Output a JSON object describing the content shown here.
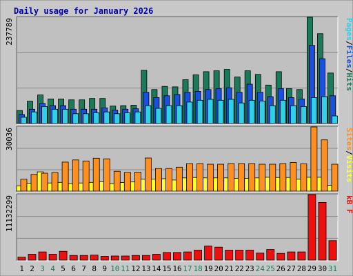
{
  "title": "Daily usage for January 2026",
  "colors": {
    "frame_bg": "#c8c8c8",
    "plot_bg": "#c0c0c0",
    "title": "#0000aa",
    "hits": "#1a7a5a",
    "files": "#1a50e0",
    "pages": "#30d0e8",
    "visits": "#ffff30",
    "sites": "#ff9020",
    "kbytes": "#ee1010",
    "weekend_label": "#1a7a5a",
    "weekday_label": "#000000"
  },
  "chart_data": [
    {
      "type": "bar",
      "panel": "hits-files-pages",
      "ymax_label": "237789",
      "ylim": [
        0,
        237789
      ],
      "series": [
        {
          "name": "Hits",
          "values": [
            29000,
            50000,
            64000,
            55000,
            55000,
            53000,
            53000,
            56000,
            56000,
            39000,
            40000,
            41000,
            119000,
            76000,
            83000,
            82000,
            98000,
            109000,
            116000,
            118000,
            121000,
            104000,
            118000,
            110000,
            86000,
            116000,
            78000,
            76000,
            237789,
            201000,
            113000
          ]
        },
        {
          "name": "Files",
          "values": [
            20000,
            32000,
            45000,
            40000,
            40000,
            32000,
            32000,
            32000,
            35000,
            30000,
            32000,
            33000,
            70000,
            58000,
            62000,
            65000,
            70000,
            72000,
            76000,
            78000,
            80000,
            70000,
            88000,
            70000,
            60000,
            78000,
            58000,
            55000,
            175000,
            145000,
            62000
          ]
        },
        {
          "name": "Pages",
          "values": [
            14000,
            26000,
            38000,
            32000,
            32000,
            22000,
            22000,
            24000,
            26000,
            22000,
            24000,
            26000,
            40000,
            34000,
            40000,
            40000,
            48000,
            52000,
            54000,
            52000,
            54000,
            46000,
            52000,
            50000,
            40000,
            52000,
            40000,
            38000,
            58000,
            60000,
            17000
          ]
        }
      ],
      "legend": [
        {
          "label": "Pages",
          "series": "Pages"
        },
        {
          "label": "Files",
          "series": "Files"
        },
        {
          "label": "Hits",
          "series": "Hits"
        }
      ]
    },
    {
      "type": "bar",
      "panel": "visits-sites",
      "ymax_label": "30036",
      "ylim": [
        0,
        30036
      ],
      "series": [
        {
          "name": "Visits",
          "values": [
            2500,
            3700,
            9000,
            3800,
            4100,
            3500,
            3800,
            4100,
            4400,
            3500,
            4000,
            4300,
            5600,
            5600,
            5800,
            5200,
            6200,
            6400,
            6200,
            6200,
            6200,
            6000,
            6000,
            6200,
            6500,
            6400,
            6400,
            5600,
            6500,
            6500,
            2700
          ]
        },
        {
          "name": "Sites",
          "values": [
            5600,
            7800,
            8400,
            8700,
            13600,
            14600,
            14100,
            15400,
            15100,
            9300,
            8800,
            8900,
            15500,
            10600,
            10600,
            11200,
            12900,
            12900,
            12600,
            12600,
            12900,
            12900,
            12900,
            12600,
            12600,
            12900,
            13400,
            12800,
            30036,
            24000,
            12600
          ]
        }
      ],
      "legend": [
        {
          "label": "Sites",
          "series": "Sites"
        },
        {
          "label": "Visits",
          "series": "Visits"
        }
      ]
    },
    {
      "type": "bar",
      "panel": "kbytes",
      "ymax_label": "11132299",
      "ylim": [
        0,
        11132299
      ],
      "series": [
        {
          "name": "kB F",
          "values": [
            500000,
            1000000,
            1400000,
            1000000,
            1500000,
            800000,
            800000,
            850000,
            650000,
            700000,
            700000,
            800000,
            800000,
            1000000,
            1300000,
            1300000,
            1400000,
            1700000,
            2400000,
            2200000,
            1700000,
            1700000,
            1700000,
            1200000,
            1800000,
            1150000,
            1400000,
            1400000,
            11132299,
            9800000,
            3300000
          ]
        }
      ],
      "legend": [
        {
          "label": "kB F",
          "series": "kB F"
        }
      ]
    }
  ],
  "days": [
    {
      "label": "1",
      "weekend": false
    },
    {
      "label": "2",
      "weekend": false
    },
    {
      "label": "3",
      "weekend": true
    },
    {
      "label": "4",
      "weekend": true
    },
    {
      "label": "5",
      "weekend": false
    },
    {
      "label": "6",
      "weekend": false
    },
    {
      "label": "7",
      "weekend": false
    },
    {
      "label": "8",
      "weekend": false
    },
    {
      "label": "9",
      "weekend": false
    },
    {
      "label": "10",
      "weekend": true
    },
    {
      "label": "11",
      "weekend": true
    },
    {
      "label": "12",
      "weekend": false
    },
    {
      "label": "13",
      "weekend": false
    },
    {
      "label": "14",
      "weekend": false
    },
    {
      "label": "15",
      "weekend": false
    },
    {
      "label": "16",
      "weekend": false
    },
    {
      "label": "17",
      "weekend": true
    },
    {
      "label": "18",
      "weekend": true
    },
    {
      "label": "19",
      "weekend": false
    },
    {
      "label": "20",
      "weekend": false
    },
    {
      "label": "21",
      "weekend": false
    },
    {
      "label": "22",
      "weekend": false
    },
    {
      "label": "23",
      "weekend": false
    },
    {
      "label": "24",
      "weekend": true
    },
    {
      "label": "25",
      "weekend": true
    },
    {
      "label": "26",
      "weekend": false
    },
    {
      "label": "27",
      "weekend": false
    },
    {
      "label": "28",
      "weekend": false
    },
    {
      "label": "29",
      "weekend": false
    },
    {
      "label": "30",
      "weekend": false
    },
    {
      "label": "31",
      "weekend": true
    }
  ]
}
